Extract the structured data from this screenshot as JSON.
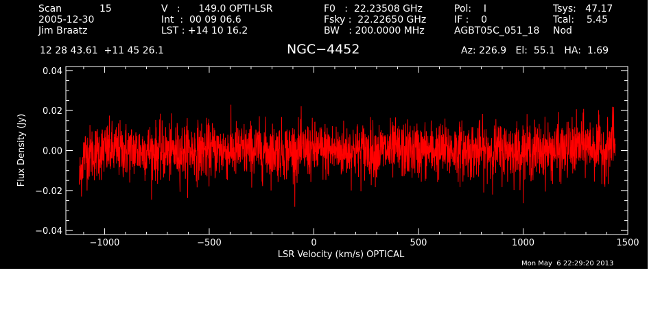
{
  "header": {
    "scan_label": "Scan",
    "scan_value": "15",
    "date": "2005-12-30",
    "observer": "Jim Braatz",
    "v_line": "V   :      149.0 OPTI-LSR",
    "int_line": "Int  :  00 09 06.6",
    "lst_line": "LST : +14 10 16.2",
    "f0_line": "F0   :  22.23508 GHz",
    "fsky_line": "Fsky :  22.22650 GHz",
    "bw_line": "BW   : 200.0000 MHz",
    "pol_line": "Pol:    I",
    "if_line": "IF :    0",
    "project": "AGBT05C_051_18",
    "tsys_line": "Tsys:   47.17",
    "tcal_line": "Tcal:    5.45",
    "mode": "Nod",
    "coords": "12 28 43.61  +11 45 26.1",
    "source": "NGC−4452",
    "azelha": "Az: 226.9   El:  55.1   HA:  1.69",
    "timestamp": "Mon May  6 22:29:20 2013"
  },
  "chart_data": {
    "type": "line",
    "xlabel": "LSR Velocity (km/s) OPTICAL",
    "ylabel": "Flux Density (Jy)",
    "xlim": [
      -1185,
      1500
    ],
    "ylim": [
      -0.042,
      0.042
    ],
    "x_ticks": [
      -1000,
      -500,
      0,
      500,
      1000,
      1500
    ],
    "x_tick_labels": [
      "−1000",
      "−500",
      "0",
      "500",
      "1000",
      "1500"
    ],
    "y_ticks": [
      -0.04,
      -0.02,
      0.0,
      0.02,
      0.04
    ],
    "y_tick_labels": [
      "−0.04",
      "−0.02",
      "0.00",
      "0.02",
      "0.04"
    ],
    "grid": false,
    "series": [
      {
        "color": "#ff0000",
        "x": [
          -1120,
          -1100,
          -1000,
          -900,
          -800,
          -700,
          -600,
          -500,
          -400,
          -300,
          -200,
          -100,
          0,
          100,
          200,
          300,
          400,
          500,
          600,
          700,
          800,
          900,
          1000,
          1100,
          1200,
          1300,
          1400,
          1440
        ],
        "y": [
          -0.015,
          -0.002,
          0.0,
          0.0,
          0.0,
          -0.001,
          0.0,
          0.0,
          0.0,
          0.0,
          0.0,
          0.0,
          0.0,
          0.0,
          0.0,
          0.0,
          0.0,
          0.0,
          0.0,
          0.0,
          0.0,
          0.0,
          0.0,
          0.0,
          0.0,
          0.003,
          0.0,
          0.008
        ],
        "noise_rms": 0.007,
        "peak_max": 0.023,
        "peak_min": -0.03
      }
    ]
  }
}
